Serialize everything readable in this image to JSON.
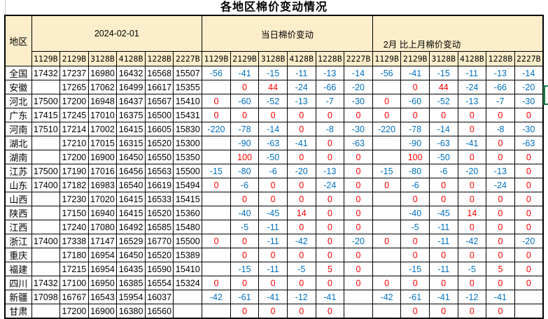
{
  "title": "各地区棉价变动情况",
  "table": {
    "region_header": "地区",
    "groups": [
      {
        "label": "2024-02-01"
      },
      {
        "label": "当日棉价变动"
      },
      {
        "label": "2月 比上月棉价变动"
      }
    ],
    "grade_columns": [
      "1129B",
      "2129B",
      "3128B",
      "4128B",
      "1228B",
      "2227B"
    ],
    "rows": [
      {
        "region": "全国",
        "prices": [
          "17432",
          "17237",
          "16980",
          "16432",
          "16568",
          "15507"
        ],
        "daily": [
          "-56",
          "-41",
          "-15",
          "-11",
          "-13",
          "-14"
        ],
        "monthly": [
          "-56",
          "-41",
          "-15",
          "-11",
          "-13",
          "-14"
        ]
      },
      {
        "region": "安徽",
        "prices": [
          "",
          "17265",
          "17062",
          "16499",
          "16617",
          "15355"
        ],
        "daily": [
          "",
          "0",
          "44",
          "-24",
          "-66",
          "-20"
        ],
        "monthly": [
          "",
          "0",
          "44",
          "-24",
          "-66",
          "-20"
        ]
      },
      {
        "region": "河北",
        "prices": [
          "17500",
          "17200",
          "16948",
          "16437",
          "16567",
          "15410"
        ],
        "daily": [
          "0",
          "-60",
          "-52",
          "-13",
          "-7",
          "-30"
        ],
        "monthly": [
          "0",
          "-60",
          "-52",
          "-13",
          "-7",
          "-30"
        ]
      },
      {
        "region": "广东",
        "prices": [
          "17415",
          "17245",
          "17010",
          "16375",
          "16500",
          "15431"
        ],
        "daily": [
          "0",
          "0",
          "0",
          "0",
          "0",
          "0"
        ],
        "monthly": [
          "0",
          "0",
          "0",
          "0",
          "0",
          "0"
        ]
      },
      {
        "region": "河南",
        "prices": [
          "17510",
          "17214",
          "17002",
          "16415",
          "16605",
          "15830"
        ],
        "daily": [
          "-220",
          "-78",
          "-14",
          "0",
          "-8",
          "-30"
        ],
        "monthly": [
          "-220",
          "-78",
          "-14",
          "0",
          "-8",
          "-30"
        ]
      },
      {
        "region": "湖北",
        "prices": [
          "",
          "17210",
          "17015",
          "16315",
          "16520",
          "15300"
        ],
        "daily": [
          "",
          "-90",
          "-63",
          "-41",
          "0",
          "-63"
        ],
        "monthly": [
          "",
          "-90",
          "-63",
          "-41",
          "0",
          "-63"
        ]
      },
      {
        "region": "湖南",
        "prices": [
          "",
          "17200",
          "16900",
          "16450",
          "16550",
          "15350"
        ],
        "daily": [
          "",
          "100",
          "-50",
          "0",
          "0",
          "0"
        ],
        "monthly": [
          "",
          "100",
          "-50",
          "0",
          "0",
          "0"
        ]
      },
      {
        "region": "江苏",
        "prices": [
          "17500",
          "17190",
          "17016",
          "16456",
          "16563",
          "15500"
        ],
        "daily": [
          "-15",
          "-80",
          "-6",
          "-20",
          "-13",
          "0"
        ],
        "monthly": [
          "-15",
          "-80",
          "-6",
          "-20",
          "-13",
          "0"
        ]
      },
      {
        "region": "山东",
        "prices": [
          "17400",
          "17182",
          "16983",
          "16540",
          "16619",
          "15494"
        ],
        "daily": [
          "0",
          "-6",
          "0",
          "0",
          "-24",
          "0"
        ],
        "monthly": [
          "0",
          "-6",
          "0",
          "0",
          "-24",
          "0"
        ]
      },
      {
        "region": "山西",
        "prices": [
          "",
          "17230",
          "17020",
          "16415",
          "16533",
          "15415"
        ],
        "daily": [
          "",
          "0",
          "0",
          "0",
          "0",
          "0"
        ],
        "monthly": [
          "",
          "0",
          "0",
          "0",
          "0",
          "0"
        ]
      },
      {
        "region": "陕西",
        "prices": [
          "",
          "17150",
          "16940",
          "16415",
          "16520",
          "15360"
        ],
        "daily": [
          "",
          "-40",
          "-45",
          "14",
          "0",
          "0"
        ],
        "monthly": [
          "",
          "-40",
          "-45",
          "14",
          "0",
          "0"
        ]
      },
      {
        "region": "江西",
        "prices": [
          "",
          "17240",
          "17080",
          "16492",
          "16585",
          "15480"
        ],
        "daily": [
          "",
          "-5",
          "-11",
          "0",
          "0",
          "0"
        ],
        "monthly": [
          "",
          "-5",
          "-11",
          "0",
          "0",
          "0"
        ]
      },
      {
        "region": "浙江",
        "prices": [
          "17400",
          "17338",
          "17147",
          "16529",
          "16770",
          "15500"
        ],
        "daily": [
          "0",
          "0",
          "-11",
          "-42",
          "0",
          "-20"
        ],
        "monthly": [
          "0",
          "0",
          "-11",
          "-42",
          "0",
          "-20"
        ]
      },
      {
        "region": "重庆",
        "prices": [
          "",
          "17180",
          "16954",
          "16450",
          "16520",
          "15389"
        ],
        "daily": [
          "",
          "0",
          "0",
          "0",
          "0",
          "0"
        ],
        "monthly": [
          "",
          "0",
          "0",
          "0",
          "0",
          "0"
        ]
      },
      {
        "region": "福建",
        "prices": [
          "",
          "17215",
          "16954",
          "16435",
          "16590",
          "15410"
        ],
        "daily": [
          "",
          "-15",
          "-11",
          "-5",
          "5",
          "0"
        ],
        "monthly": [
          "",
          "-15",
          "-11",
          "-5",
          "5",
          "0"
        ]
      },
      {
        "region": "四川",
        "prices": [
          "17432",
          "17100",
          "16950",
          "16385",
          "16554",
          "15324"
        ],
        "daily": [
          "0",
          "0",
          "0",
          "0",
          "0",
          "0"
        ],
        "monthly": [
          "0",
          "0",
          "0",
          "0",
          "0",
          "0"
        ]
      },
      {
        "region": "新疆",
        "prices": [
          "17098",
          "16767",
          "16543",
          "15954",
          "16037",
          ""
        ],
        "daily": [
          "-42",
          "-61",
          "-41",
          "-12",
          "-41",
          ""
        ],
        "monthly": [
          "-42",
          "-61",
          "-41",
          "-12",
          "-41",
          ""
        ]
      },
      {
        "region": "甘肃",
        "prices": [
          "",
          "17200",
          "16900",
          "16380",
          "16560",
          ""
        ],
        "daily": [
          "",
          "0",
          "0",
          "0",
          "0",
          ""
        ],
        "monthly": [
          "",
          "0",
          "0",
          "0",
          "0",
          ""
        ]
      }
    ]
  },
  "colors": {
    "header_fill": "#FCEECB",
    "negative_text": "#0070C0",
    "positive_text": "#FF0000",
    "selection_marker": "#1E7B45"
  }
}
